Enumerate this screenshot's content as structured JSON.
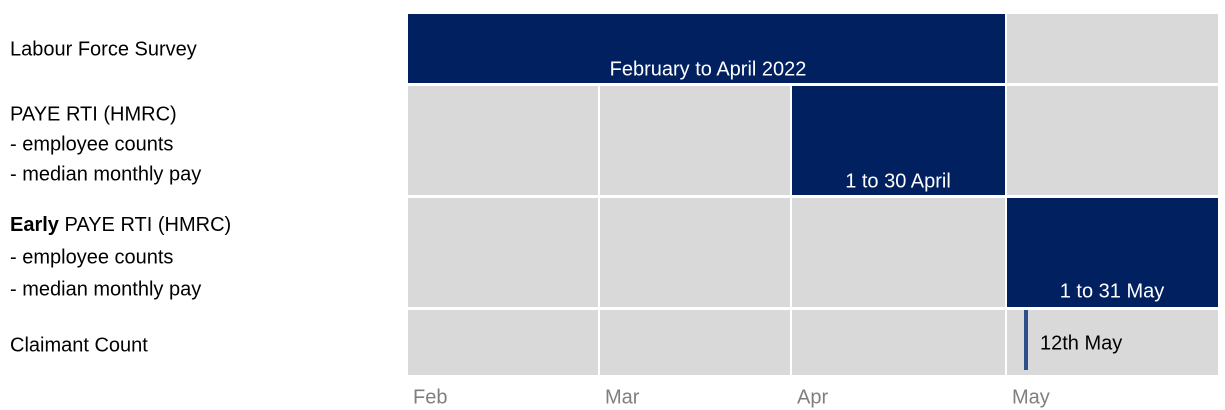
{
  "rows": [
    {
      "label": "Labour Force Survey",
      "period": "February to April 2022"
    },
    {
      "label": "PAYE RTI (HMRC)",
      "details": [
        "- employee counts",
        "- median monthly pay"
      ],
      "period": "1 to 30 April"
    },
    {
      "label_bold": "Early",
      "label": "PAYE RTI (HMRC)",
      "details": [
        "- employee counts",
        "- median monthly pay"
      ],
      "period": "1 to 31 May"
    },
    {
      "label": "Claimant Count",
      "period": "12th May"
    }
  ],
  "months": [
    "Feb",
    "Mar",
    "Apr",
    "May"
  ]
}
